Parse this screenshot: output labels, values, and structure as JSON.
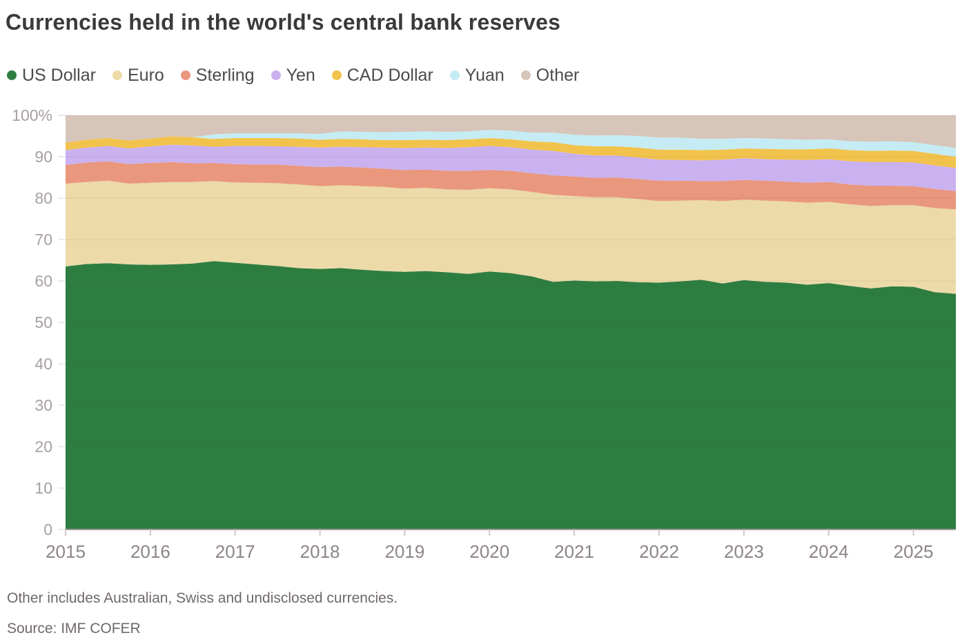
{
  "title": "Currencies held in the world's central bank reserves",
  "footnote": "Other includes Australian, Swiss and undisclosed currencies.",
  "source": "Source: IMF COFER",
  "chart_data": {
    "type": "area",
    "stacked": true,
    "unit": "%",
    "title": "Currencies held in the world's central bank reserves",
    "xlabel": "",
    "ylabel": "",
    "ylim": [
      0,
      100
    ],
    "x_range": [
      2015,
      2025.5
    ],
    "x_frequency": "quarterly",
    "grid": true,
    "legend_position": "top-left",
    "x": [
      2015,
      2015.25,
      2015.5,
      2015.75,
      2016,
      2016.25,
      2016.5,
      2016.75,
      2017,
      2017.25,
      2017.5,
      2017.75,
      2018,
      2018.25,
      2018.5,
      2018.75,
      2019,
      2019.25,
      2019.5,
      2019.75,
      2020,
      2020.25,
      2020.5,
      2020.75,
      2021,
      2021.25,
      2021.5,
      2021.75,
      2022,
      2022.25,
      2022.5,
      2022.75,
      2023,
      2023.25,
      2023.5,
      2023.75,
      2024,
      2024.25,
      2024.5,
      2024.75,
      2025,
      2025.25,
      2025.5
    ],
    "x_ticks": [
      {
        "value": 2015,
        "label": "2015"
      },
      {
        "value": 2016,
        "label": "2016"
      },
      {
        "value": 2017,
        "label": "2017"
      },
      {
        "value": 2018,
        "label": "2018"
      },
      {
        "value": 2019,
        "label": "2019"
      },
      {
        "value": 2020,
        "label": "2020"
      },
      {
        "value": 2021,
        "label": "2021"
      },
      {
        "value": 2022,
        "label": "2022"
      },
      {
        "value": 2023,
        "label": "2023"
      },
      {
        "value": 2024,
        "label": "2024"
      },
      {
        "value": 2025,
        "label": "2025"
      }
    ],
    "y_ticks": [
      {
        "value": 0,
        "label": "0"
      },
      {
        "value": 10,
        "label": "10"
      },
      {
        "value": 20,
        "label": "20"
      },
      {
        "value": 30,
        "label": "30"
      },
      {
        "value": 40,
        "label": "40"
      },
      {
        "value": 50,
        "label": "50"
      },
      {
        "value": 60,
        "label": "60"
      },
      {
        "value": 70,
        "label": "70"
      },
      {
        "value": 80,
        "label": "80"
      },
      {
        "value": 90,
        "label": "90"
      },
      {
        "value": 100,
        "label": "100%"
      }
    ],
    "series": [
      {
        "name": "US Dollar",
        "color": "#2e7d40",
        "values": [
          63.5,
          64.1,
          64.3,
          64.0,
          63.9,
          64.0,
          64.2,
          64.8,
          64.4,
          64.0,
          63.6,
          63.1,
          62.9,
          63.1,
          62.7,
          62.4,
          62.2,
          62.4,
          62.1,
          61.7,
          62.3,
          61.9,
          61.1,
          59.8,
          60.1,
          59.9,
          60.0,
          59.7,
          59.6,
          59.9,
          60.3,
          59.4,
          60.2,
          59.8,
          59.6,
          59.1,
          59.5,
          58.8,
          58.2,
          58.7,
          58.6,
          57.3,
          56.9
        ]
      },
      {
        "name": "Euro",
        "color": "#ecdaa9",
        "values": [
          20.0,
          19.8,
          19.9,
          19.5,
          19.8,
          19.9,
          19.7,
          19.3,
          19.4,
          19.7,
          20.0,
          20.2,
          20.0,
          20.0,
          20.2,
          20.3,
          20.1,
          20.1,
          20.0,
          20.3,
          20.1,
          20.2,
          20.4,
          21.0,
          20.4,
          20.3,
          20.2,
          20.1,
          19.7,
          19.5,
          19.2,
          19.9,
          19.4,
          19.6,
          19.6,
          19.8,
          19.6,
          19.7,
          19.9,
          19.6,
          19.7,
          20.3,
          20.4
        ]
      },
      {
        "name": "Sterling",
        "color": "#e9977d",
        "values": [
          4.5,
          4.7,
          4.7,
          4.7,
          4.8,
          4.8,
          4.5,
          4.4,
          4.4,
          4.4,
          4.5,
          4.5,
          4.6,
          4.5,
          4.5,
          4.4,
          4.5,
          4.4,
          4.5,
          4.6,
          4.4,
          4.5,
          4.5,
          4.7,
          4.7,
          4.7,
          4.8,
          4.8,
          4.9,
          4.8,
          4.6,
          4.8,
          4.8,
          4.8,
          4.8,
          4.8,
          4.8,
          4.8,
          4.9,
          4.7,
          4.6,
          4.6,
          4.4
        ]
      },
      {
        "name": "Yen",
        "color": "#cab1f0",
        "values": [
          3.6,
          3.6,
          3.7,
          3.8,
          4.0,
          4.2,
          4.3,
          3.9,
          4.4,
          4.5,
          4.4,
          4.6,
          4.7,
          4.8,
          4.9,
          5.1,
          5.3,
          5.3,
          5.5,
          5.7,
          5.8,
          5.7,
          5.7,
          5.9,
          5.5,
          5.4,
          5.3,
          5.2,
          5.1,
          5.0,
          5.0,
          5.2,
          5.2,
          5.2,
          5.3,
          5.5,
          5.5,
          5.6,
          5.7,
          5.7,
          5.7,
          5.7,
          5.6
        ]
      },
      {
        "name": "CAD Dollar",
        "color": "#f2c34c",
        "values": [
          1.8,
          1.9,
          1.9,
          1.9,
          1.9,
          2.0,
          2.0,
          1.9,
          1.9,
          1.9,
          2.0,
          2.0,
          1.9,
          1.9,
          1.9,
          1.8,
          1.9,
          1.9,
          1.9,
          1.9,
          1.9,
          1.9,
          2.0,
          2.1,
          2.1,
          2.2,
          2.2,
          2.4,
          2.4,
          2.5,
          2.5,
          2.4,
          2.4,
          2.5,
          2.5,
          2.6,
          2.6,
          2.7,
          2.7,
          2.8,
          2.8,
          2.8,
          2.7
        ]
      },
      {
        "name": "Yuan",
        "color": "#c5ecf5",
        "values": [
          0,
          0,
          0,
          0,
          0,
          0,
          0,
          1.1,
          1.1,
          1.1,
          1.1,
          1.2,
          1.4,
          1.8,
          1.8,
          1.9,
          2.0,
          2.0,
          2.0,
          1.9,
          2.0,
          2.1,
          2.1,
          2.3,
          2.5,
          2.6,
          2.7,
          2.8,
          2.9,
          2.9,
          2.7,
          2.6,
          2.5,
          2.5,
          2.4,
          2.3,
          2.2,
          2.1,
          2.2,
          2.2,
          2.1,
          2.1,
          2.1
        ]
      },
      {
        "name": "Other",
        "color": "#d7c5ba",
        "values": [
          6.6,
          5.9,
          5.5,
          6.1,
          5.6,
          5.1,
          5.3,
          4.6,
          4.4,
          4.4,
          4.4,
          4.4,
          4.5,
          3.9,
          4.0,
          4.1,
          4.0,
          3.9,
          4.0,
          3.9,
          3.5,
          3.7,
          4.2,
          4.2,
          4.7,
          4.9,
          4.8,
          5.0,
          5.4,
          5.4,
          5.7,
          5.7,
          5.5,
          5.6,
          5.8,
          5.9,
          5.8,
          6.3,
          6.4,
          6.3,
          6.5,
          7.2,
          7.9
        ]
      }
    ]
  },
  "style": {
    "title_color": "#3a3a3a",
    "legend_text_color": "#4b4b4b",
    "y_label_color": "#a89f9f",
    "x_label_color": "#8d8585",
    "footnote_color": "#6f6868",
    "axis_line_color": "#9e9696",
    "background_color": "#ffffff"
  }
}
